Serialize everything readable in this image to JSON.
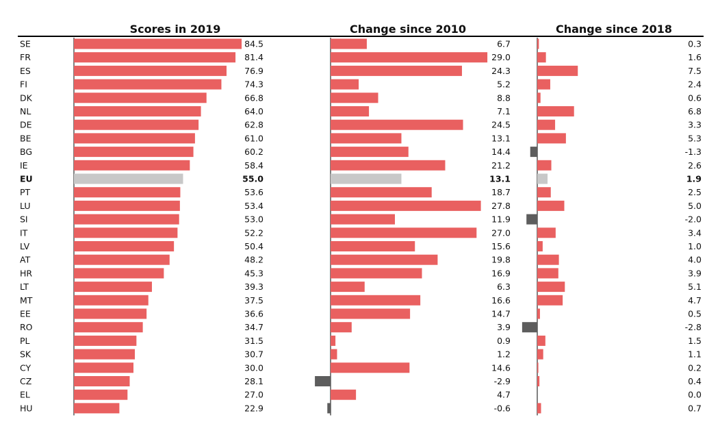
{
  "colors": {
    "positive": "#e96060",
    "negative": "#5d5d5d",
    "eu": "#c8c8c8",
    "axis": "#000000"
  },
  "chart_data": {
    "type": "bar",
    "orientation": "horizontal",
    "categories": [
      "SE",
      "FR",
      "ES",
      "FI",
      "DK",
      "NL",
      "DE",
      "BE",
      "BG",
      "IE",
      "EU",
      "PT",
      "LU",
      "SI",
      "IT",
      "LV",
      "AT",
      "HR",
      "LT",
      "MT",
      "EE",
      "RO",
      "PL",
      "SK",
      "CY",
      "CZ",
      "EL",
      "HU"
    ],
    "highlight_category": "EU",
    "panels": [
      {
        "title": "Scores in 2019",
        "values": [
          84.5,
          81.4,
          76.9,
          74.3,
          66.8,
          64.0,
          62.8,
          61.0,
          60.2,
          58.4,
          55.0,
          53.6,
          53.4,
          53.0,
          52.2,
          50.4,
          48.2,
          45.3,
          39.3,
          37.5,
          36.6,
          34.7,
          31.5,
          30.7,
          30.0,
          28.1,
          27.0,
          22.9
        ],
        "labels": [
          "84.5",
          "81.4",
          "76.9",
          "74.3",
          "66.8",
          "64.0",
          "62.8",
          "61.0",
          "60.2",
          "58.4",
          "55.0",
          "53.6",
          "53.4",
          "53.0",
          "52.2",
          "50.4",
          "48.2",
          "45.3",
          "39.3",
          "37.5",
          "36.6",
          "34.7",
          "31.5",
          "30.7",
          "30.0",
          "28.1",
          "27.0",
          "22.9"
        ],
        "xlim": [
          0,
          87
        ]
      },
      {
        "title": "Change since 2010",
        "values": [
          6.7,
          29.0,
          24.3,
          5.2,
          8.8,
          7.1,
          24.5,
          13.1,
          14.4,
          21.2,
          13.1,
          18.7,
          27.8,
          11.9,
          27.0,
          15.6,
          19.8,
          16.9,
          6.3,
          16.6,
          14.7,
          3.9,
          0.9,
          1.2,
          14.6,
          -2.9,
          4.7,
          -0.6
        ],
        "labels": [
          "6.7",
          "29.0",
          "24.3",
          "5.2",
          "8.8",
          "7.1",
          "24.5",
          "13.1",
          "14.4",
          "21.2",
          "13.1",
          "18.7",
          "27.8",
          "11.9",
          "27.0",
          "15.6",
          "19.8",
          "16.9",
          "6.3",
          "16.6",
          "14.7",
          "3.9",
          "0.9",
          "1.2",
          "14.6",
          "-2.9",
          "4.7",
          "-0.6"
        ],
        "xlim": [
          -3,
          30
        ]
      },
      {
        "title": "Change since 2018",
        "values": [
          0.3,
          1.6,
          7.5,
          2.4,
          0.6,
          6.8,
          3.3,
          5.3,
          -1.3,
          2.6,
          1.9,
          2.5,
          5.0,
          -2.0,
          3.4,
          1.0,
          4.0,
          3.9,
          5.1,
          4.7,
          0.5,
          -2.8,
          1.5,
          1.1,
          0.2,
          0.4,
          0.0,
          0.7
        ],
        "labels": [
          "0.3",
          "1.6",
          "7.5",
          "2.4",
          "0.6",
          "6.8",
          "3.3",
          "5.3",
          "-1.3",
          "2.6",
          "1.9",
          "2.5",
          "5.0",
          "-2.0",
          "3.4",
          "1.0",
          "4.0",
          "3.9",
          "5.1",
          "4.7",
          "0.5",
          "-2.8",
          "1.5",
          "1.1",
          "0.2",
          "0.4",
          "0.0",
          "0.7"
        ],
        "xlim": [
          -3,
          25
        ]
      }
    ]
  }
}
